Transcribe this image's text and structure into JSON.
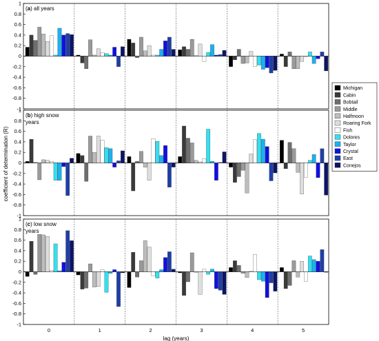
{
  "chart_data": {
    "type": "bar",
    "ylabel": "coefficient of determination (R)",
    "xlabel": "lag (years)",
    "categories": [
      "0",
      "1",
      "2",
      "3",
      "4",
      "5"
    ],
    "ylim": [
      -1,
      1
    ],
    "yticks": [
      1,
      0.8,
      0.6,
      0.4,
      0.2,
      0,
      -0.2,
      -0.4,
      -0.6,
      -0.8,
      -1
    ],
    "ytick_labels": [
      "1",
      "0.8",
      "0.6",
      "0.4",
      "0.2",
      "0",
      "-0.2",
      "-0.4",
      "-0.6",
      "-0.8",
      "-1"
    ],
    "legend_position": "right",
    "series": [
      {
        "name": "Michigan",
        "color": "#000000"
      },
      {
        "name": "Cabin",
        "color": "#3a3a3a"
      },
      {
        "name": "Bobtail",
        "color": "#6f6f6f"
      },
      {
        "name": "Middle",
        "color": "#9a9a9a"
      },
      {
        "name": "Halfmoon",
        "color": "#bdbdbd"
      },
      {
        "name": "Roaring Fork",
        "color": "#dedede"
      },
      {
        "name": "Fish",
        "color": "#ffffff"
      },
      {
        "name": "Dolores",
        "color": "#33e0f0"
      },
      {
        "name": "Taylor",
        "color": "#1ab2f0"
      },
      {
        "name": "Crystal",
        "color": "#1010e0"
      },
      {
        "name": "East",
        "color": "#1e3fa8"
      },
      {
        "name": "Conejos",
        "color": "#0b1466"
      }
    ],
    "panels": [
      {
        "label_letter": "a",
        "label_rest": " all years",
        "values": [
          [
            0.17,
            0.4,
            0.3,
            0.55,
            0.42,
            0.28,
            0.39,
            0.02,
            0.53,
            0.4,
            0.43,
            0.41
          ],
          [
            0.02,
            -0.13,
            -0.24,
            0.31,
            0.02,
            0.14,
            0.07,
            0.05,
            0.02,
            0.17,
            -0.2,
            0.18
          ],
          [
            0.32,
            0.25,
            -0.03,
            0.36,
            0.1,
            0.2,
            0.02,
            0.02,
            0.13,
            0.29,
            0.36,
            0.13
          ],
          [
            0.12,
            0.18,
            0.13,
            0.32,
            0.01,
            0.23,
            -0.1,
            0.07,
            0.22,
            0.02,
            0.03,
            0.11
          ],
          [
            -0.2,
            -0.07,
            0.13,
            -0.14,
            -0.13,
            0.09,
            -0.2,
            -0.17,
            -0.25,
            -0.22,
            -0.32,
            -0.27
          ],
          [
            0.04,
            -0.2,
            0.08,
            -0.24,
            -0.24,
            -0.1,
            -0.01,
            0.08,
            -0.14,
            -0.05,
            0.08,
            -0.28
          ]
        ]
      },
      {
        "label_letter": "b",
        "label_rest": " high snow years",
        "values": [
          [
            0.03,
            0.45,
            0.01,
            -0.32,
            0.06,
            0.05,
            0.03,
            -0.33,
            -0.33,
            -0.07,
            -0.62,
            0.09
          ],
          [
            0.18,
            0.14,
            -0.35,
            0.51,
            0.2,
            0.51,
            0.43,
            0.29,
            0.27,
            -0.08,
            0.04,
            0.23
          ],
          [
            0.12,
            -0.53,
            0.03,
            0.22,
            -0.08,
            -0.33,
            0.46,
            0.41,
            0.14,
            0.33,
            -0.46,
            -0.08
          ],
          [
            0.12,
            0.7,
            0.47,
            0.38,
            0.05,
            0.02,
            0.08,
            0.64,
            0.03,
            -0.33,
            0.01,
            0.21
          ],
          [
            -0.08,
            -0.37,
            -0.26,
            -0.14,
            -0.57,
            0.17,
            0.44,
            0.56,
            0.45,
            0.31,
            -0.34,
            -0.19
          ],
          [
            0.43,
            -0.11,
            0.39,
            0.27,
            -0.18,
            -0.59,
            -0.27,
            0.05,
            0.16,
            -0.28,
            0.27,
            -0.61
          ]
        ]
      },
      {
        "label_letter": "c",
        "label_rest": " low snow years",
        "values": [
          [
            -0.09,
            0.58,
            -0.05,
            0.71,
            0.7,
            0.67,
            0.03,
            0.53,
            0.02,
            0.18,
            0.78,
            0.59
          ],
          [
            -0.06,
            -0.33,
            -0.31,
            0.15,
            -0.29,
            -0.28,
            0.04,
            -0.39,
            -0.03,
            0.04,
            -0.66,
            -0.02
          ],
          [
            -0.3,
            0.37,
            -0.1,
            0.21,
            0.59,
            0.47,
            -0.08,
            -0.12,
            0.04,
            0.27,
            0.38,
            0.05
          ],
          [
            -0.02,
            -0.45,
            -0.19,
            0.36,
            -0.01,
            -0.43,
            0.05,
            -0.05,
            0.05,
            -0.32,
            -0.35,
            -0.43
          ],
          [
            0.08,
            0.21,
            0.12,
            -0.03,
            -0.11,
            0.01,
            0.33,
            -0.15,
            -0.18,
            -0.49,
            -0.21,
            -0.37
          ],
          [
            0.08,
            -0.32,
            -0.26,
            0.21,
            -0.1,
            0.2,
            -0.18,
            0.3,
            0.23,
            0.2,
            0.42,
            -0.01
          ]
        ]
      }
    ]
  }
}
